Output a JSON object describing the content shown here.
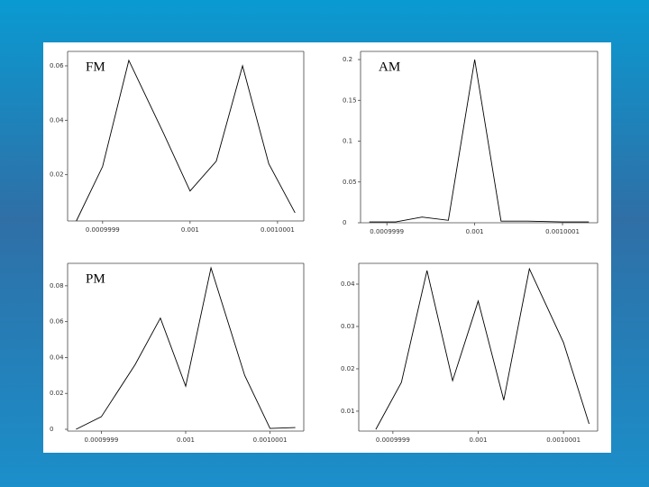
{
  "chart_data": [
    {
      "type": "line",
      "label": "FM",
      "x": [
        0.00099987,
        0.0009999,
        0.00099993,
        0.00099997,
        0.001,
        0.00100003,
        0.00100006,
        0.00100009,
        0.00100012
      ],
      "values": [
        0.003,
        0.023,
        0.062,
        0.035,
        0.014,
        0.025,
        0.06,
        0.024,
        0.006
      ],
      "xlim": [
        0.00099986,
        0.00100013
      ],
      "ylim": [
        0.003,
        0.0653
      ],
      "xticks": [
        0.0009999,
        0.001,
        0.0010001
      ],
      "yticks": [
        0.02,
        0.04,
        0.06
      ],
      "color": "#000000"
    },
    {
      "type": "line",
      "label": "AM",
      "x": [
        0.00099988,
        0.00099991,
        0.00099994,
        0.00099997,
        0.001,
        0.00100003,
        0.00100006,
        0.0010001,
        0.00100013
      ],
      "values": [
        0.001,
        0.001,
        0.007,
        0.003,
        0.2,
        0.002,
        0.002,
        0.001,
        0.001
      ],
      "xlim": [
        0.00099987,
        0.00100014
      ],
      "ylim": [
        0,
        0.21
      ],
      "xticks": [
        0.0009999,
        0.001,
        0.0010001
      ],
      "yticks": [
        0,
        0.05,
        0.1,
        0.15,
        0.2
      ],
      "color": "#000000"
    },
    {
      "type": "line",
      "label": "PM",
      "x": [
        0.00099987,
        0.0009999,
        0.00099994,
        0.00099997,
        0.001,
        0.00100003,
        0.00100007,
        0.0010001,
        0.00100013
      ],
      "values": [
        0,
        0.007,
        0.036,
        0.062,
        0.024,
        0.09,
        0.03,
        0.0005,
        0.001
      ],
      "xlim": [
        0.00099986,
        0.00100014
      ],
      "ylim": [
        -0.001,
        0.0925
      ],
      "xticks": [
        0.0009999,
        0.001,
        0.0010001
      ],
      "yticks": [
        0,
        0.02,
        0.04,
        0.06,
        0.08
      ],
      "color": "#000000"
    },
    {
      "type": "line",
      "x": [
        0.00099988,
        0.00099991,
        0.00099994,
        0.00099997,
        0.001,
        0.00100003,
        0.00100006,
        0.0010001,
        0.00100013
      ],
      "values": [
        0.0057,
        0.0168,
        0.0432,
        0.0172,
        0.036,
        0.0126,
        0.0436,
        0.0262,
        0.007
      ],
      "xlim": [
        0.00099986,
        0.00100014
      ],
      "ylim": [
        0.0053,
        0.0449
      ],
      "xticks": [
        0.0009999,
        0.001,
        0.0010001
      ],
      "yticks": [
        0.01,
        0.02,
        0.03,
        0.04
      ],
      "color": "#000000"
    }
  ]
}
